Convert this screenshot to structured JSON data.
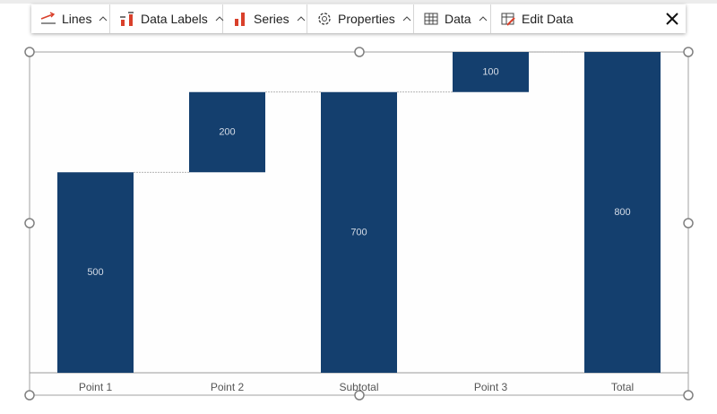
{
  "toolbar": {
    "items": [
      {
        "label": "Lines"
      },
      {
        "label": "Data Labels"
      },
      {
        "label": "Series"
      },
      {
        "label": "Properties"
      },
      {
        "label": "Data"
      },
      {
        "label": "Edit Data"
      }
    ]
  },
  "chart_data": {
    "type": "waterfall",
    "categories": [
      "Point 1",
      "Point 2",
      "Subtotal",
      "Point 3",
      "Total"
    ],
    "values": [
      500,
      200,
      700,
      100,
      800
    ],
    "totals": [
      false,
      false,
      true,
      false,
      true
    ],
    "color": "#143f6e",
    "connectors": true
  }
}
